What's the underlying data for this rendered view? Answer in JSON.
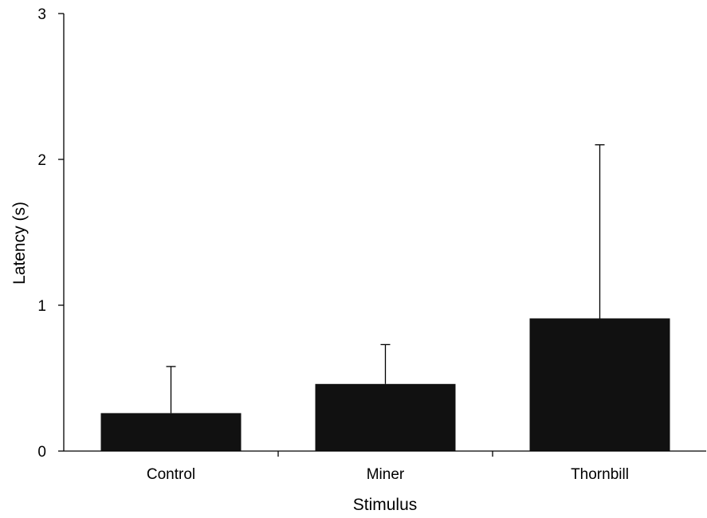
{
  "chart_data": {
    "type": "bar",
    "xlabel": "Stimulus",
    "ylabel": "Latency  (s)",
    "ylim": [
      0,
      3
    ],
    "yticks": [
      "0",
      "1",
      "2",
      "3"
    ],
    "categories": [
      "Control",
      "Miner",
      "Thornbill"
    ],
    "values": [
      0.26,
      0.46,
      0.91
    ],
    "error_upper": [
      0.58,
      0.73,
      2.1
    ],
    "error_bars": "upper only",
    "grid": false,
    "legend": "none",
    "bar_color": "#111111",
    "axis_color": "#000000"
  }
}
